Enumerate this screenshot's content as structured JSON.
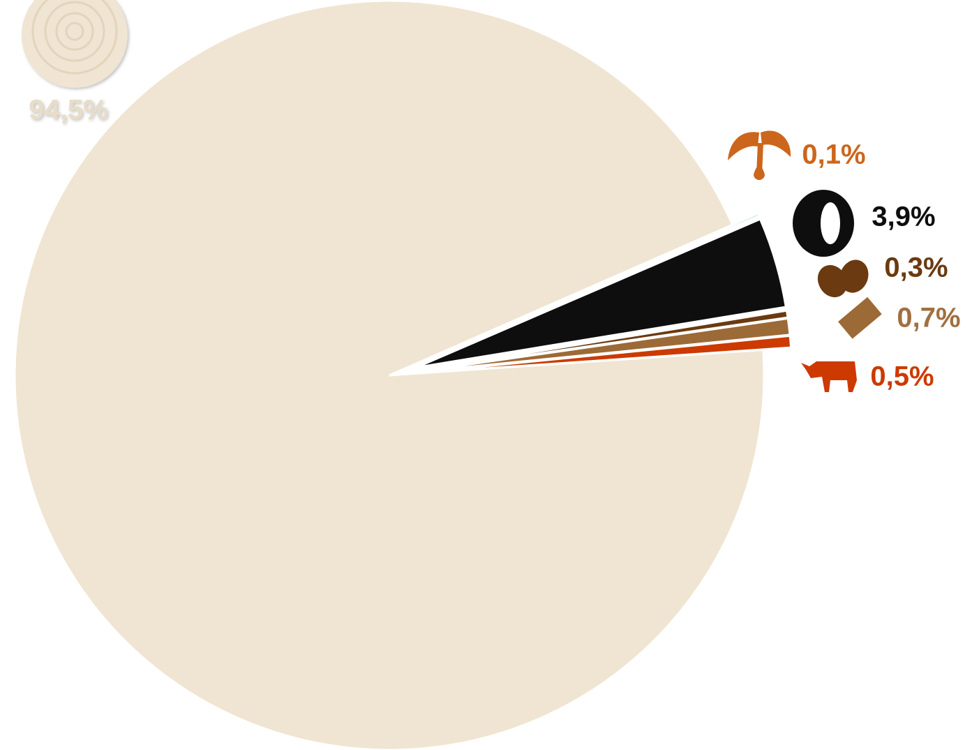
{
  "chart_data": {
    "type": "pie",
    "values": [
      0.1,
      3.9,
      0.3,
      0.7,
      0.5,
      94.5
    ],
    "value_labels": [
      "0,1%",
      "3,9%",
      "0,3%",
      "0,7%",
      "0,5%",
      "94,5%"
    ],
    "colors": [
      "#1e8fb8",
      "#0e0e0e",
      "#6b3a10",
      "#9c6a36",
      "#cc3a00",
      "#f0e5d2"
    ],
    "label_colors": [
      "#cc661c",
      "#0e0e0e",
      "#6b3a10",
      "#a07040",
      "#cc3a00",
      "#e9ddc8"
    ]
  }
}
